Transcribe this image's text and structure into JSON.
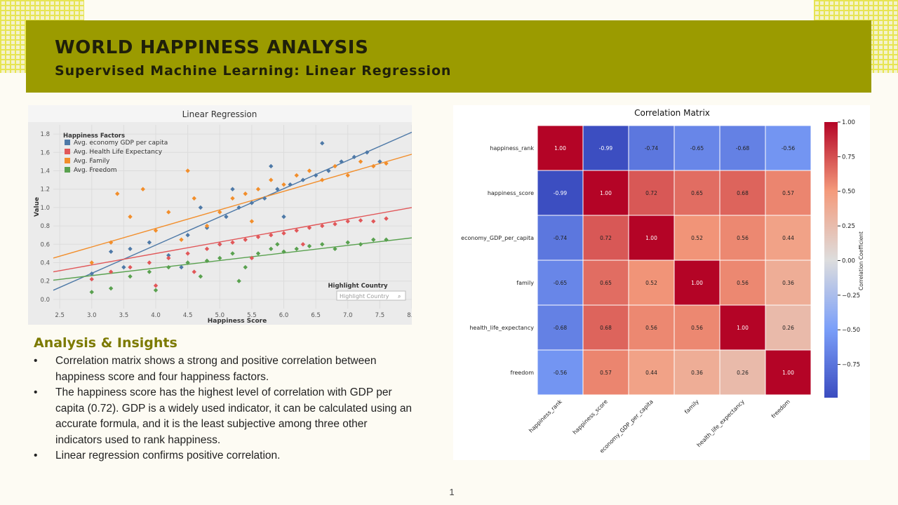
{
  "slide": {
    "title": "WORLD HAPPINESS ANALYSIS",
    "subtitle": "Supervised Machine Learning: Linear Regression",
    "page_number": "1"
  },
  "insights": {
    "heading": "Analysis & Insights",
    "bullets": [
      "Correlation matrix shows a strong and positive correlation between happiness score and four happiness factors.",
      "The happiness score has the highest level of correlation with GDP per capita (0.72). GDP is a widely used indicator, it can be calculated using an accurate formula, and it is the least subjective among three other indicators used to rank happiness.",
      "Linear regression confirms positive correlation."
    ]
  },
  "chart_data": [
    {
      "type": "scatter",
      "title": "Linear Regression",
      "xlabel": "Happiness Score",
      "ylabel": "Value",
      "xlim": [
        2.4,
        8.0
      ],
      "ylim": [
        -0.1,
        1.9
      ],
      "xticks": [
        "2.5",
        "3.0",
        "3.5",
        "4.0",
        "4.5",
        "5.0",
        "5.5",
        "6.0",
        "6.5",
        "7.0",
        "7.5",
        "8.0"
      ],
      "yticks": [
        "0.0",
        "0.2",
        "0.4",
        "0.6",
        "0.8",
        "1.0",
        "1.2",
        "1.4",
        "1.6",
        "1.8"
      ],
      "grid": true,
      "legend_title": "Happiness Factors",
      "legend_position": "top-left",
      "highlight_control": {
        "label": "Highlight Country",
        "placeholder": "Highlight Country"
      },
      "series": [
        {
          "name": "Avg. economy GDP per capita",
          "color": "#4e79a7",
          "trend": [
            [
              2.4,
              0.1
            ],
            [
              8.0,
              1.82
            ]
          ],
          "points": [
            [
              3.0,
              0.28
            ],
            [
              3.3,
              0.52
            ],
            [
              3.6,
              0.55
            ],
            [
              3.9,
              0.62
            ],
            [
              4.2,
              0.48
            ],
            [
              4.5,
              0.7
            ],
            [
              4.8,
              0.78
            ],
            [
              5.0,
              0.6
            ],
            [
              5.1,
              0.9
            ],
            [
              5.3,
              1.0
            ],
            [
              5.5,
              1.05
            ],
            [
              5.7,
              1.1
            ],
            [
              5.9,
              1.2
            ],
            [
              6.1,
              1.25
            ],
            [
              6.3,
              1.3
            ],
            [
              6.5,
              1.35
            ],
            [
              6.7,
              1.4
            ],
            [
              6.9,
              1.5
            ],
            [
              7.1,
              1.55
            ],
            [
              7.3,
              1.6
            ],
            [
              7.5,
              1.5
            ],
            [
              4.4,
              0.35
            ],
            [
              5.2,
              1.2
            ],
            [
              6.0,
              0.9
            ],
            [
              6.6,
              1.7
            ],
            [
              3.5,
              0.35
            ],
            [
              4.7,
              1.0
            ],
            [
              5.8,
              1.45
            ]
          ]
        },
        {
          "name": "Avg. Health Life Expectancy",
          "color": "#e15759",
          "trend": [
            [
              2.4,
              0.3
            ],
            [
              8.0,
              1.0
            ]
          ],
          "points": [
            [
              3.0,
              0.22
            ],
            [
              3.3,
              0.3
            ],
            [
              3.6,
              0.35
            ],
            [
              3.9,
              0.4
            ],
            [
              4.2,
              0.45
            ],
            [
              4.5,
              0.5
            ],
            [
              4.8,
              0.55
            ],
            [
              5.0,
              0.6
            ],
            [
              5.2,
              0.62
            ],
            [
              5.4,
              0.65
            ],
            [
              5.6,
              0.68
            ],
            [
              5.8,
              0.7
            ],
            [
              6.0,
              0.72
            ],
            [
              6.2,
              0.75
            ],
            [
              6.4,
              0.78
            ],
            [
              6.6,
              0.8
            ],
            [
              6.8,
              0.82
            ],
            [
              7.0,
              0.85
            ],
            [
              7.2,
              0.86
            ],
            [
              7.4,
              0.85
            ],
            [
              7.6,
              0.88
            ],
            [
              4.0,
              0.15
            ],
            [
              4.6,
              0.3
            ],
            [
              5.5,
              0.45
            ],
            [
              6.3,
              0.6
            ]
          ]
        },
        {
          "name": "Avg. Family",
          "color": "#f28e2b",
          "trend": [
            [
              2.4,
              0.45
            ],
            [
              8.0,
              1.58
            ]
          ],
          "points": [
            [
              3.0,
              0.4
            ],
            [
              3.3,
              0.62
            ],
            [
              3.6,
              0.9
            ],
            [
              3.8,
              1.2
            ],
            [
              4.0,
              0.75
            ],
            [
              4.2,
              0.95
            ],
            [
              4.4,
              0.65
            ],
            [
              4.6,
              1.1
            ],
            [
              4.8,
              0.8
            ],
            [
              5.0,
              0.95
            ],
            [
              5.2,
              1.1
            ],
            [
              5.4,
              1.15
            ],
            [
              5.6,
              1.2
            ],
            [
              5.8,
              1.3
            ],
            [
              6.0,
              1.25
            ],
            [
              6.2,
              1.35
            ],
            [
              6.4,
              1.4
            ],
            [
              6.6,
              1.3
            ],
            [
              6.8,
              1.45
            ],
            [
              7.0,
              1.35
            ],
            [
              7.2,
              1.5
            ],
            [
              7.4,
              1.45
            ],
            [
              7.6,
              1.48
            ],
            [
              3.4,
              1.15
            ],
            [
              4.5,
              1.4
            ],
            [
              5.5,
              0.85
            ]
          ]
        },
        {
          "name": "Avg. Freedom",
          "color": "#59a14f",
          "trend": [
            [
              2.4,
              0.21
            ],
            [
              8.0,
              0.67
            ]
          ],
          "points": [
            [
              3.0,
              0.08
            ],
            [
              3.3,
              0.12
            ],
            [
              3.6,
              0.25
            ],
            [
              3.9,
              0.3
            ],
            [
              4.2,
              0.35
            ],
            [
              4.5,
              0.4
            ],
            [
              4.8,
              0.42
            ],
            [
              5.0,
              0.45
            ],
            [
              5.2,
              0.5
            ],
            [
              5.4,
              0.35
            ],
            [
              5.6,
              0.5
            ],
            [
              5.8,
              0.55
            ],
            [
              6.0,
              0.52
            ],
            [
              6.2,
              0.55
            ],
            [
              6.4,
              0.58
            ],
            [
              6.6,
              0.6
            ],
            [
              6.8,
              0.55
            ],
            [
              7.0,
              0.62
            ],
            [
              7.2,
              0.6
            ],
            [
              7.4,
              0.65
            ],
            [
              7.6,
              0.65
            ],
            [
              4.0,
              0.1
            ],
            [
              4.7,
              0.25
            ],
            [
              5.3,
              0.2
            ],
            [
              5.9,
              0.6
            ]
          ]
        }
      ]
    },
    {
      "type": "heatmap",
      "title": "Correlation Matrix",
      "labels": [
        "happiness_rank",
        "happiness_score",
        "economy_GDP_per_capita",
        "family",
        "health_life_expectancy",
        "freedom"
      ],
      "matrix": [
        [
          1.0,
          -0.99,
          -0.74,
          -0.65,
          -0.68,
          -0.56
        ],
        [
          -0.99,
          1.0,
          0.72,
          0.65,
          0.68,
          0.57
        ],
        [
          -0.74,
          0.72,
          1.0,
          0.52,
          0.56,
          0.44
        ],
        [
          -0.65,
          0.65,
          0.52,
          1.0,
          0.56,
          0.36
        ],
        [
          -0.68,
          0.68,
          0.56,
          0.56,
          1.0,
          0.26
        ],
        [
          -0.56,
          0.57,
          0.44,
          0.36,
          0.26,
          1.0
        ]
      ],
      "colorbar": {
        "label": "Correlation Coefficient",
        "ticks": [
          "1.00",
          "0.75",
          "0.50",
          "0.25",
          "0.00",
          "−0.25",
          "−0.50",
          "−0.75"
        ],
        "range": [
          -0.99,
          1.0
        ]
      }
    }
  ]
}
